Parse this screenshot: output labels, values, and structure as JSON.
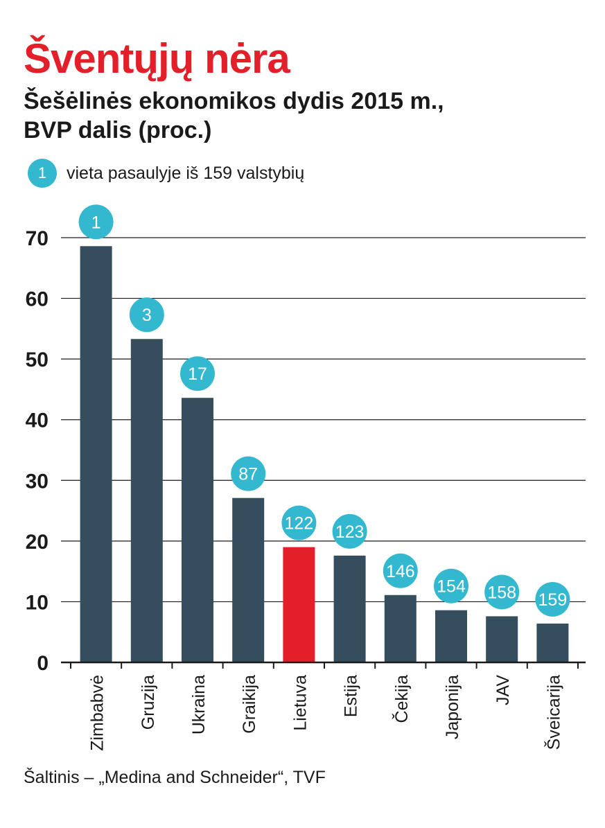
{
  "title": "Šventųjų nėra",
  "subtitle_line1": "Šešėlinės ekonomikos dydis 2015 m.,",
  "subtitle_line2": "BVP dalis (proc.)",
  "legend": {
    "marker": "1",
    "text": "vieta pasaulyje iš 159 valstybių"
  },
  "source": "Šaltinis – „Medina and Schneider“, TVF",
  "colors": {
    "bar": "#354d5d",
    "highlight": "#e3202a",
    "badge": "#33b8d0",
    "title": "#e3202a"
  },
  "chart_data": {
    "type": "bar",
    "categories": [
      "Zimbabvė",
      "Gruzija",
      "Ukraina",
      "Graikija",
      "Lietuva",
      "Estija",
      "Čekija",
      "Japonija",
      "JAV",
      "Šveicarija"
    ],
    "values": [
      68.6,
      53.3,
      43.6,
      27.1,
      19.0,
      17.6,
      11.1,
      8.6,
      7.6,
      6.4
    ],
    "ranks": [
      "1",
      "3",
      "17",
      "87",
      "122",
      "123",
      "146",
      "154",
      "158",
      "159"
    ],
    "highlight": "Lietuva",
    "ylim": [
      0,
      70
    ],
    "yticks": [
      0,
      10,
      20,
      30,
      40,
      50,
      60,
      70
    ],
    "grid": true,
    "xlabel": "",
    "ylabel": ""
  }
}
